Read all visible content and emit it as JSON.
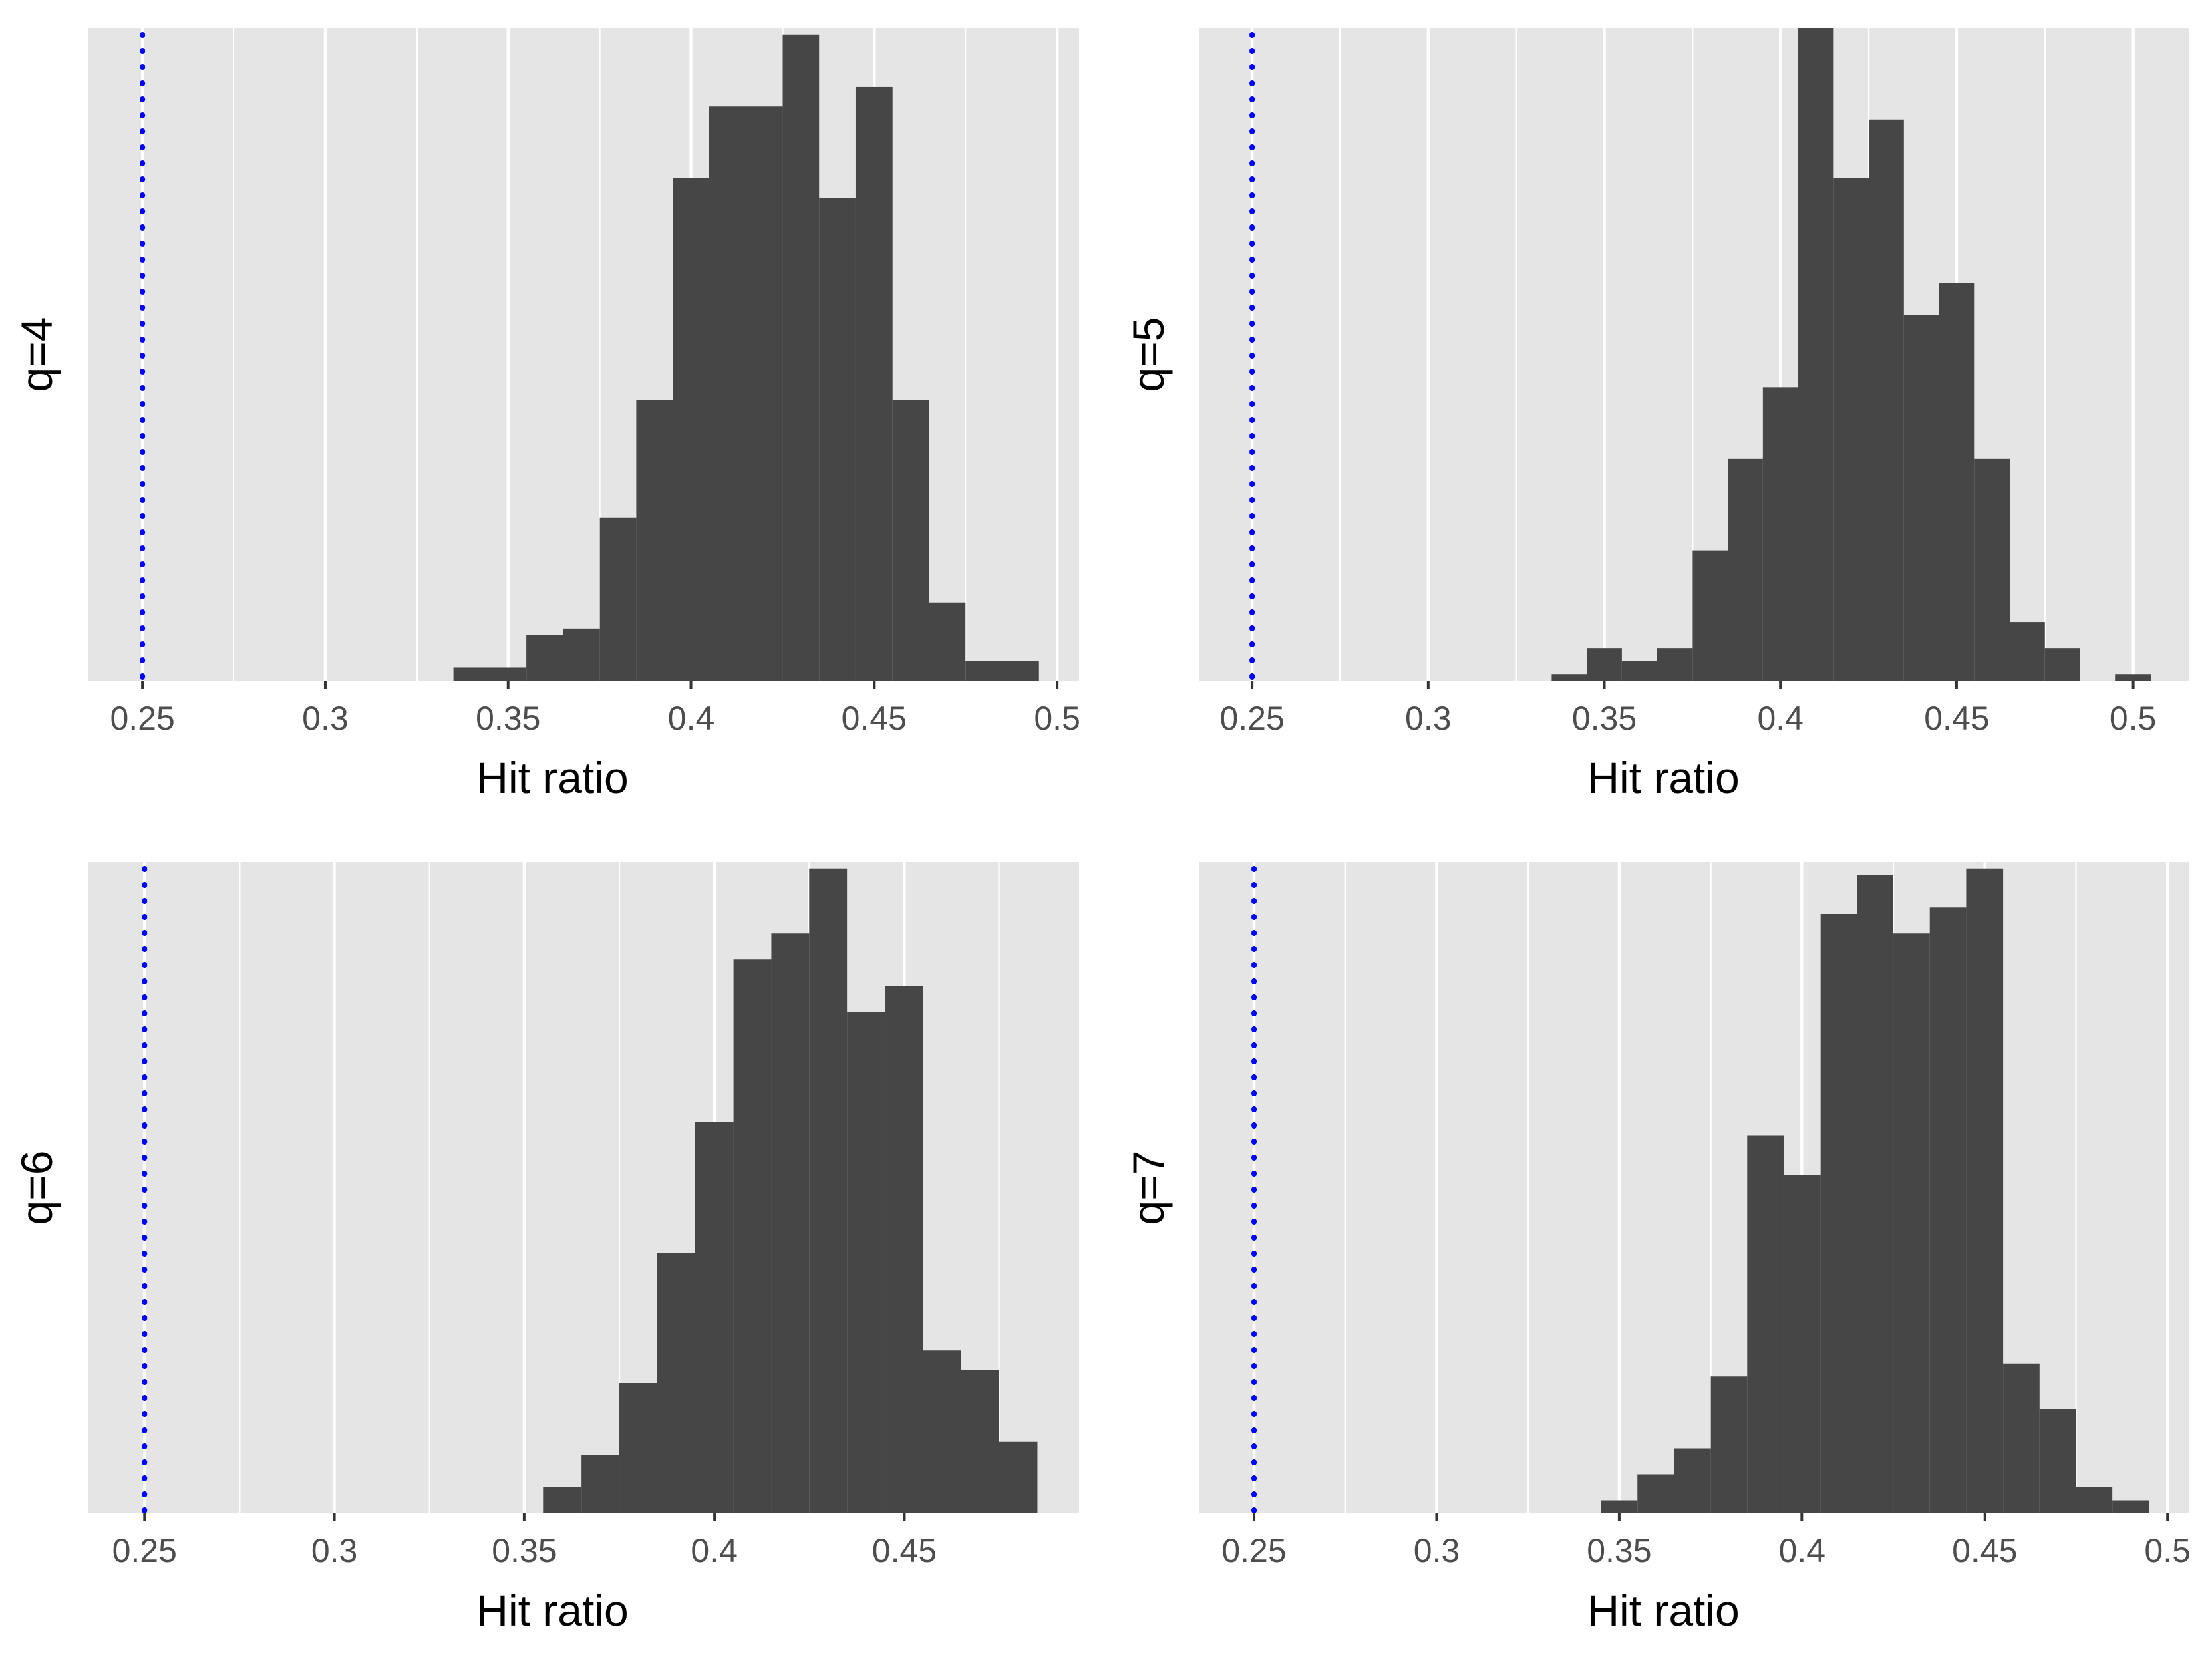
{
  "colors": {
    "panel_bg": "#e5e5e5",
    "grid": "#ffffff",
    "bar": "#464646",
    "reference_line": "#0000ff",
    "tick_text": "#4d4d4d",
    "label_text": "#000000"
  },
  "chart_data": [
    {
      "type": "bar",
      "title": "",
      "xlabel": "Hit ratio",
      "ylabel": "q=4",
      "xlim": [
        0.235,
        0.506
      ],
      "ylim": [
        0,
        100
      ],
      "xticks": [
        0.25,
        0.3,
        0.35,
        0.4,
        0.45,
        0.5
      ],
      "xtick_labels": [
        "0.25",
        "0.3",
        "0.35",
        "0.4",
        "0.45",
        "0.5"
      ],
      "bin_width": 0.01,
      "bin_centers": [
        0.34,
        0.35,
        0.36,
        0.37,
        0.38,
        0.39,
        0.4,
        0.41,
        0.42,
        0.43,
        0.44,
        0.45,
        0.46,
        0.47,
        0.48,
        0.49
      ],
      "values": [
        2,
        2,
        7,
        8,
        25,
        43,
        77,
        88,
        88,
        99,
        74,
        91,
        43,
        12,
        3,
        3
      ],
      "reference_line_x": 0.25
    },
    {
      "type": "bar",
      "title": "",
      "xlabel": "Hit ratio",
      "ylabel": "q=5",
      "xlim": [
        0.235,
        0.516
      ],
      "ylim": [
        0,
        100
      ],
      "xticks": [
        0.25,
        0.3,
        0.35,
        0.4,
        0.45,
        0.5
      ],
      "xtick_labels": [
        "0.25",
        "0.3",
        "0.35",
        "0.4",
        "0.45",
        "0.5"
      ],
      "bin_width": 0.01,
      "bin_centers": [
        0.34,
        0.35,
        0.36,
        0.37,
        0.38,
        0.39,
        0.4,
        0.41,
        0.42,
        0.43,
        0.44,
        0.45,
        0.46,
        0.47,
        0.48,
        0.49,
        0.5
      ],
      "values": [
        1,
        5,
        3,
        5,
        20,
        34,
        45,
        100,
        77,
        86,
        56,
        61,
        34,
        9,
        5,
        0,
        1
      ],
      "reference_line_x": 0.25
    },
    {
      "type": "bar",
      "title": "",
      "xlabel": "Hit ratio",
      "ylabel": "q=6",
      "xlim": [
        0.235,
        0.496
      ],
      "ylim": [
        0,
        100
      ],
      "xticks": [
        0.25,
        0.3,
        0.35,
        0.4,
        0.45
      ],
      "xtick_labels": [
        "0.25",
        "0.3",
        "0.35",
        "0.4",
        "0.45"
      ],
      "bin_width": 0.01,
      "bin_centers": [
        0.36,
        0.37,
        0.38,
        0.39,
        0.4,
        0.41,
        0.42,
        0.43,
        0.44,
        0.45,
        0.46,
        0.47,
        0.48
      ],
      "values": [
        4,
        9,
        20,
        40,
        60,
        85,
        89,
        99,
        77,
        81,
        25,
        22,
        11
      ],
      "reference_line_x": 0.25
    },
    {
      "type": "bar",
      "title": "",
      "xlabel": "Hit ratio",
      "ylabel": "q=7",
      "xlim": [
        0.235,
        0.506
      ],
      "ylim": [
        0,
        100
      ],
      "xticks": [
        0.25,
        0.3,
        0.35,
        0.4,
        0.45,
        0.5
      ],
      "xtick_labels": [
        "0.25",
        "0.3",
        "0.35",
        "0.4",
        "0.45",
        "0.5"
      ],
      "bin_width": 0.01,
      "bin_centers": [
        0.35,
        0.36,
        0.37,
        0.38,
        0.39,
        0.4,
        0.41,
        0.42,
        0.43,
        0.44,
        0.45,
        0.46,
        0.47,
        0.48,
        0.49
      ],
      "values": [
        2,
        6,
        10,
        21,
        58,
        52,
        92,
        98,
        89,
        93,
        99,
        23,
        16,
        4,
        2
      ],
      "reference_line_x": 0.25
    }
  ]
}
